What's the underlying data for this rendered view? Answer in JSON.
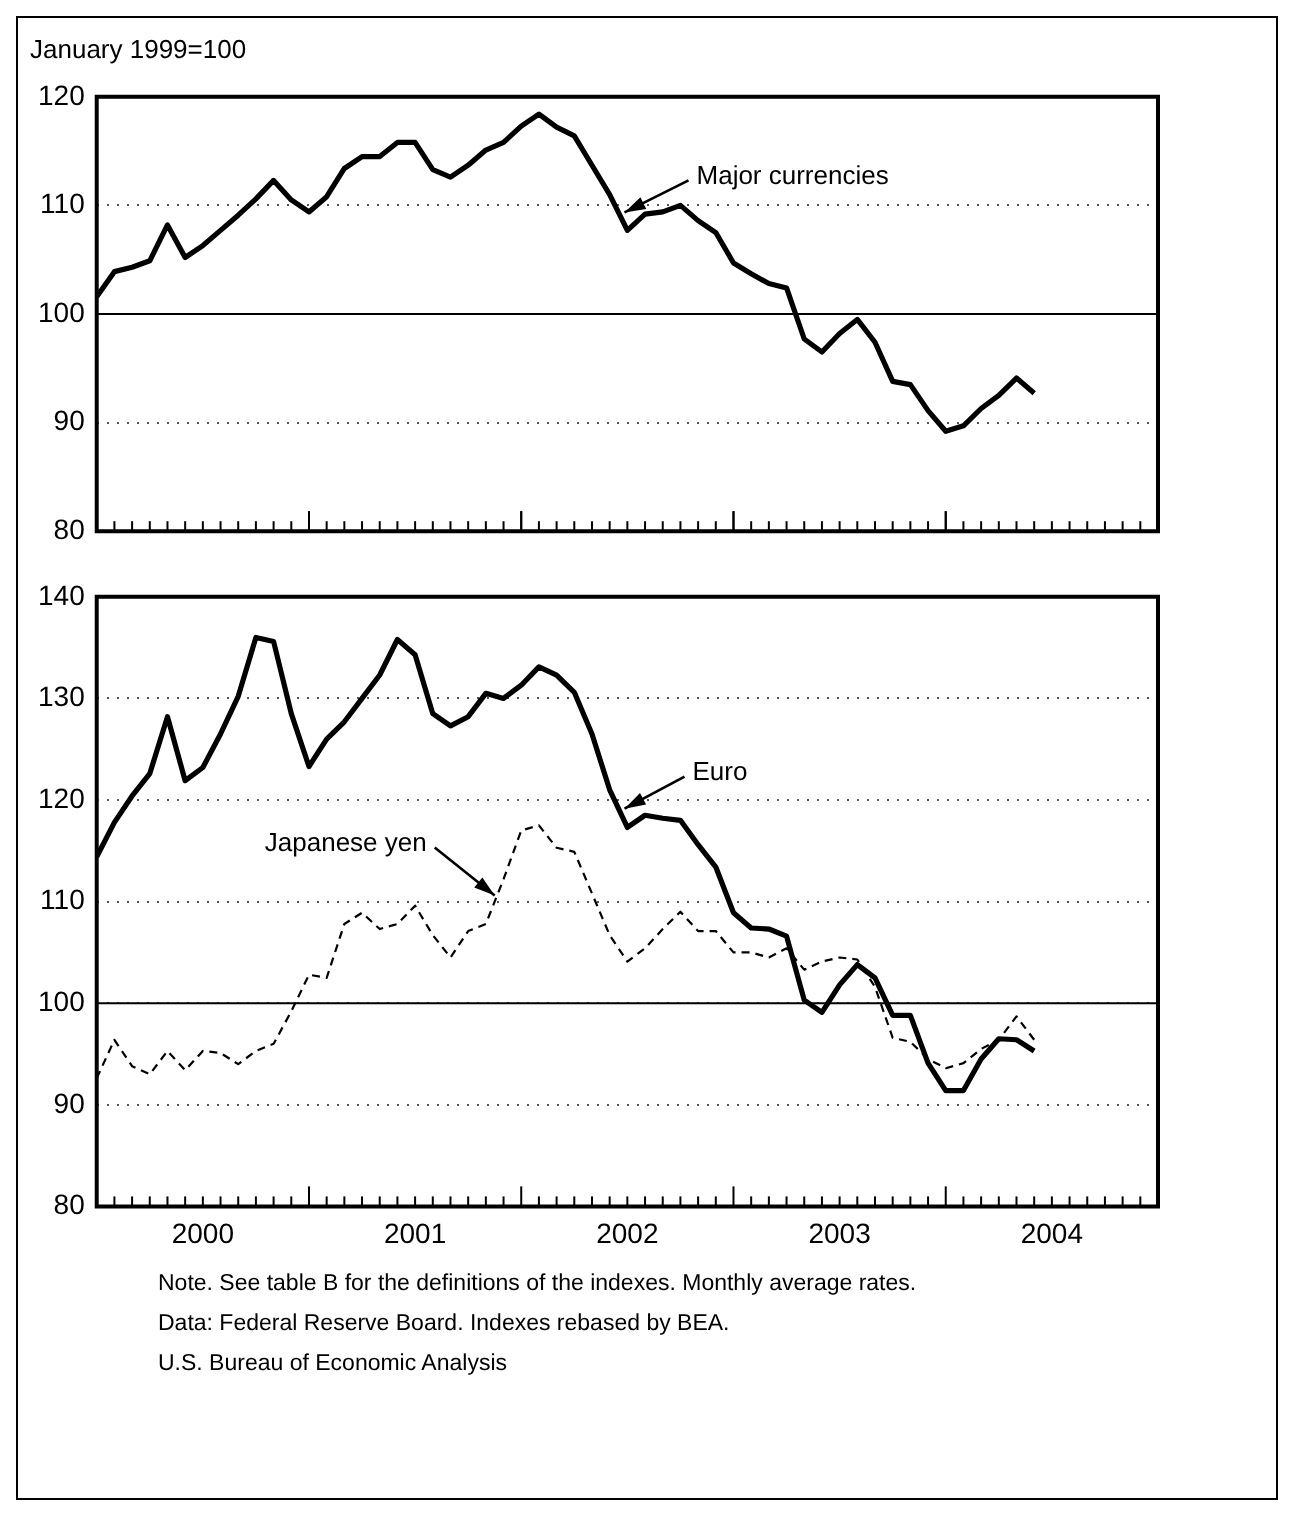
{
  "chart_data": [
    {
      "type": "line",
      "ylabel": "January 1999=100",
      "xlim": [
        "2000-01",
        "2005-01"
      ],
      "xticks": [
        {
          "value": "2001-01",
          "label": null
        },
        {
          "value": "2002-01",
          "label": null
        },
        {
          "value": "2003-01",
          "label": null
        },
        {
          "value": "2004-01",
          "label": null
        }
      ],
      "ylim": [
        80,
        120
      ],
      "yticks": [
        80,
        90,
        100,
        110,
        120
      ],
      "grid": "y",
      "tick_labels": "y",
      "marker": "none",
      "line_style": "solid",
      "x": [
        "2000-01",
        "2000-02",
        "2000-03",
        "2000-04",
        "2000-05",
        "2000-06",
        "2000-07",
        "2000-08",
        "2000-09",
        "2000-10",
        "2000-11",
        "2000-12",
        "2001-01",
        "2001-02",
        "2001-03",
        "2001-04",
        "2001-05",
        "2001-06",
        "2001-07",
        "2001-08",
        "2001-09",
        "2001-10",
        "2001-11",
        "2001-12",
        "2002-01",
        "2002-02",
        "2002-03",
        "2002-04",
        "2002-05",
        "2002-06",
        "2002-07",
        "2002-08",
        "2002-09",
        "2002-10",
        "2002-11",
        "2002-12",
        "2003-01",
        "2003-02",
        "2003-03",
        "2003-04",
        "2003-05",
        "2003-06",
        "2003-07",
        "2003-08",
        "2003-09",
        "2003-10",
        "2003-11",
        "2003-12",
        "2004-01",
        "2004-02",
        "2004-03",
        "2004-04",
        "2004-05",
        "2004-06"
      ],
      "series": [
        {
          "name": "Major currencies",
          "color": "#000000",
          "values": [
            101.6,
            103.9,
            104.3,
            104.9,
            108.2,
            105.2,
            106.3,
            107.7,
            109.1,
            110.6,
            112.3,
            110.5,
            109.4,
            110.8,
            113.4,
            114.5,
            114.5,
            115.8,
            115.8,
            113.3,
            112.6,
            113.7,
            115.1,
            115.8,
            117.3,
            118.4,
            117.2,
            116.4,
            113.7,
            111.0,
            107.7,
            109.2,
            109.4,
            110.0,
            108.6,
            107.5,
            104.7,
            103.7,
            102.8,
            102.4,
            97.7,
            96.5,
            98.2,
            99.5,
            97.4,
            93.8,
            93.5,
            91.1,
            89.2,
            89.7,
            91.3,
            92.5,
            94.1,
            92.7
          ]
        }
      ],
      "ref_lines": [
        {
          "axis": "y",
          "value": 100,
          "color": "#000000"
        }
      ]
    },
    {
      "type": "line",
      "xlim": [
        "2000-01",
        "2005-01"
      ],
      "xticks": [
        {
          "value": "2000-07",
          "label": "2000"
        },
        {
          "value": "2001-07",
          "label": "2001"
        },
        {
          "value": "2002-07",
          "label": "2002"
        },
        {
          "value": "2003-07",
          "label": "2003"
        },
        {
          "value": "2004-07",
          "label": "2004"
        }
      ],
      "ylim": [
        80,
        140
      ],
      "yticks": [
        80,
        90,
        100,
        110,
        120,
        130,
        140
      ],
      "grid": "y",
      "marker": "none",
      "line_style": "solid",
      "x": [
        "2000-01",
        "2000-02",
        "2000-03",
        "2000-04",
        "2000-05",
        "2000-06",
        "2000-07",
        "2000-08",
        "2000-09",
        "2000-10",
        "2000-11",
        "2000-12",
        "2001-01",
        "2001-02",
        "2001-03",
        "2001-04",
        "2001-05",
        "2001-06",
        "2001-07",
        "2001-08",
        "2001-09",
        "2001-10",
        "2001-11",
        "2001-12",
        "2002-01",
        "2002-02",
        "2002-03",
        "2002-04",
        "2002-05",
        "2002-06",
        "2002-07",
        "2002-08",
        "2002-09",
        "2002-10",
        "2002-11",
        "2002-12",
        "2003-01",
        "2003-02",
        "2003-03",
        "2003-04",
        "2003-05",
        "2003-06",
        "2003-07",
        "2003-08",
        "2003-09",
        "2003-10",
        "2003-11",
        "2003-12",
        "2004-01",
        "2004-02",
        "2004-03",
        "2004-04",
        "2004-05",
        "2004-06"
      ],
      "series": [
        {
          "name": "Japanese yen",
          "color": "#000000",
          "line_style": "dashed",
          "values": [
            92.6,
            96.4,
            93.8,
            93.0,
            95.3,
            93.4,
            95.3,
            95.1,
            94.0,
            95.3,
            96.0,
            99.2,
            102.8,
            102.5,
            107.8,
            108.9,
            107.3,
            107.8,
            109.6,
            106.7,
            104.5,
            107.1,
            107.8,
            112.2,
            117.0,
            117.5,
            115.3,
            114.9,
            110.8,
            106.7,
            104.1,
            105.4,
            107.3,
            109.0,
            107.1,
            107.1,
            105.0,
            105.0,
            104.5,
            105.4,
            103.3,
            104.1,
            104.5,
            104.3,
            101.6,
            96.6,
            96.2,
            94.5,
            93.6,
            94.1,
            95.5,
            96.4,
            98.7,
            96.4
          ]
        },
        {
          "name": "Euro",
          "color": "#000000",
          "values": [
            114.4,
            117.8,
            120.4,
            122.6,
            128.2,
            121.9,
            123.2,
            126.5,
            130.2,
            136.0,
            135.6,
            128.5,
            123.3,
            126.0,
            127.7,
            130.0,
            132.3,
            135.8,
            134.3,
            128.5,
            127.3,
            128.2,
            130.5,
            130.0,
            131.3,
            133.1,
            132.3,
            130.6,
            126.5,
            121.0,
            117.3,
            118.5,
            118.2,
            118.0,
            115.6,
            113.4,
            108.9,
            107.4,
            107.3,
            106.6,
            100.3,
            99.1,
            101.8,
            103.8,
            102.5,
            98.8,
            98.8,
            94.1,
            91.4,
            91.4,
            94.5,
            96.5,
            96.4,
            95.3
          ]
        }
      ],
      "ref_lines": [
        {
          "axis": "y",
          "value": 100,
          "color": "#000000"
        }
      ],
      "annotations": [
        "Note. See table B for the definitions of the indexes. Monthly average rates.",
        "Data: Federal Reserve Board. Indexes rebased by BEA.",
        "U.S. Bureau of Economic Analysis"
      ]
    }
  ]
}
